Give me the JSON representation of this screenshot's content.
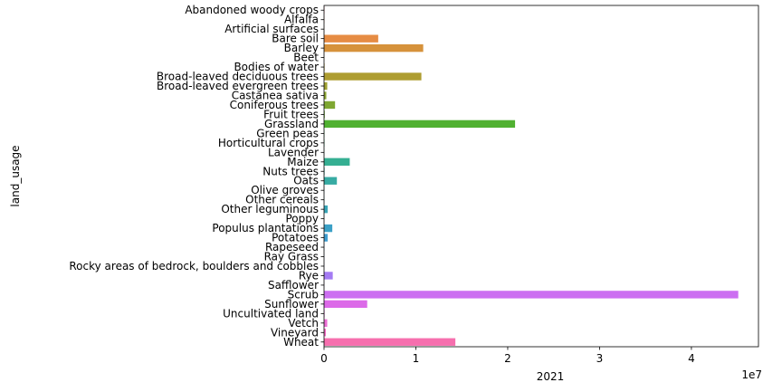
{
  "chart_data": {
    "type": "bar",
    "orientation": "horizontal",
    "xlabel": "2021",
    "ylabel": "land_usage",
    "x_scale_label": "1e7",
    "xlim": [
      0,
      47300000
    ],
    "x_ticks": [
      0,
      10000000,
      20000000,
      30000000,
      40000000
    ],
    "x_tick_labels": [
      "0",
      "1",
      "2",
      "3",
      "4"
    ],
    "grid": false,
    "legend": "none",
    "categories": [
      "Abandoned woody crops",
      "Alfalfa",
      "Artificial surfaces",
      "Bare soil",
      "Barley",
      "Beet",
      "Bodies of water",
      "Broad-leaved deciduous trees",
      "Broad-leaved evergreen trees",
      "Castanea sativa",
      "Coniferous trees",
      "Fruit trees",
      "Grassland",
      "Green peas",
      "Horticultural crops",
      "Lavender",
      "Maize",
      "Nuts trees",
      "Oats",
      "Olive groves",
      "Other cereals",
      "Other leguminous",
      "Poppy",
      "Populus plantations",
      "Potatoes",
      "Rapeseed",
      "Ray Grass",
      "Rocky areas of bedrock, boulders and cobbles",
      "Rye",
      "Safflower",
      "Scrub",
      "Sunflower",
      "Uncultivated land",
      "Vetch",
      "Vineyard",
      "Wheat"
    ],
    "values": [
      50000,
      30000,
      20000,
      5900000,
      10800000,
      20000,
      60000,
      10600000,
      350000,
      250000,
      1200000,
      80000,
      20800000,
      40000,
      50000,
      20000,
      2800000,
      60000,
      1400000,
      20000,
      30000,
      400000,
      20000,
      900000,
      400000,
      30000,
      20000,
      20000,
      950000,
      20000,
      45100000,
      4700000,
      60000,
      350000,
      200000,
      14300000
    ],
    "colors": [
      "#f77189",
      "#f7754f",
      "#f5784c",
      "#e68c43",
      "#d6923b",
      "#c99937",
      "#bb9f32",
      "#ae9d31",
      "#a0a131",
      "#8ea732",
      "#7fa732",
      "#6aac33",
      "#50b131",
      "#37b33d",
      "#33b36b",
      "#34b184",
      "#35af92",
      "#36ad9b",
      "#37aba3",
      "#38a9aa",
      "#38a7b0",
      "#39a5b7",
      "#3aa3be",
      "#3ba0c6",
      "#3e9dd0",
      "#4f93db",
      "#6d8be6",
      "#8b82ef",
      "#a47bf3",
      "#b874f4",
      "#cc6ff1",
      "#dc6ae8",
      "#e56be0",
      "#ec6dd4",
      "#f36cc3",
      "#f66fae"
    ]
  }
}
